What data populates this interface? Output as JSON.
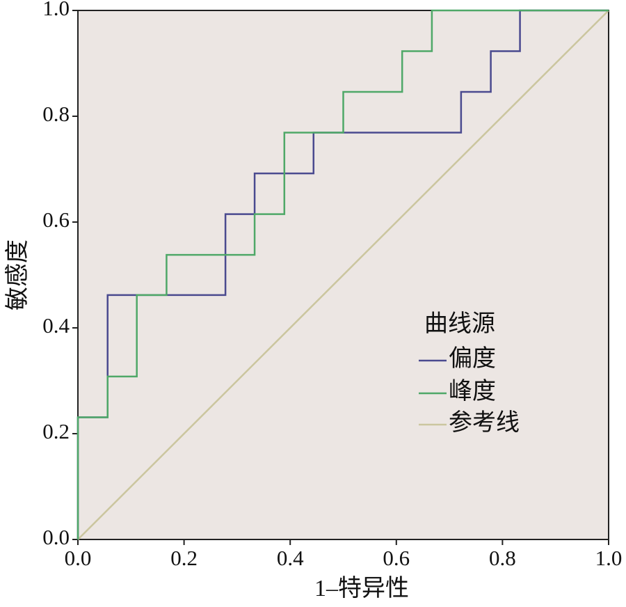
{
  "chart_data": {
    "type": "line",
    "x_label": "1–特异性",
    "y_label": "敏感度",
    "legend_title": "曲线源",
    "legend_position": "right",
    "xlim": [
      0,
      1
    ],
    "ylim": [
      0,
      1
    ],
    "xticks": [
      {
        "value": 0,
        "label": "0.0"
      },
      {
        "value": 0.2,
        "label": "0.2"
      },
      {
        "value": 0.4,
        "label": "0.4"
      },
      {
        "value": 0.6,
        "label": "0.6"
      },
      {
        "value": 0.8,
        "label": "0.8"
      },
      {
        "value": 1,
        "label": "1.0"
      }
    ],
    "yticks": [
      {
        "value": 0,
        "label": "0.0"
      },
      {
        "value": 0.2,
        "label": "0.2"
      },
      {
        "value": 0.4,
        "label": "0.4"
      },
      {
        "value": 0.6,
        "label": "0.6"
      },
      {
        "value": 0.8,
        "label": "0.8"
      },
      {
        "value": 1,
        "label": "1.0"
      }
    ],
    "series": [
      {
        "name": "偏度",
        "color": "#4a4a8f",
        "x": [
          0,
          0,
          0.056,
          0.056,
          0.278,
          0.278,
          0.333,
          0.333,
          0.444,
          0.444,
          0.722,
          0.722,
          0.778,
          0.778,
          0.833,
          0.833,
          1
        ],
        "values": [
          0,
          0.231,
          0.231,
          0.462,
          0.462,
          0.615,
          0.615,
          0.692,
          0.692,
          0.769,
          0.769,
          0.846,
          0.846,
          0.923,
          0.923,
          1,
          1
        ]
      },
      {
        "name": "峰度",
        "color": "#4fa868",
        "x": [
          0,
          0,
          0.056,
          0.056,
          0.111,
          0.111,
          0.167,
          0.167,
          0.333,
          0.333,
          0.389,
          0.389,
          0.5,
          0.5,
          0.611,
          0.611,
          0.667,
          0.667,
          1
        ],
        "values": [
          0,
          0.231,
          0.231,
          0.308,
          0.308,
          0.462,
          0.462,
          0.538,
          0.538,
          0.615,
          0.615,
          0.769,
          0.769,
          0.846,
          0.846,
          0.923,
          0.923,
          1,
          1
        ]
      },
      {
        "name": "参考线",
        "color": "#cbc69f",
        "x": [
          0,
          1
        ],
        "values": [
          0,
          1
        ]
      }
    ]
  }
}
